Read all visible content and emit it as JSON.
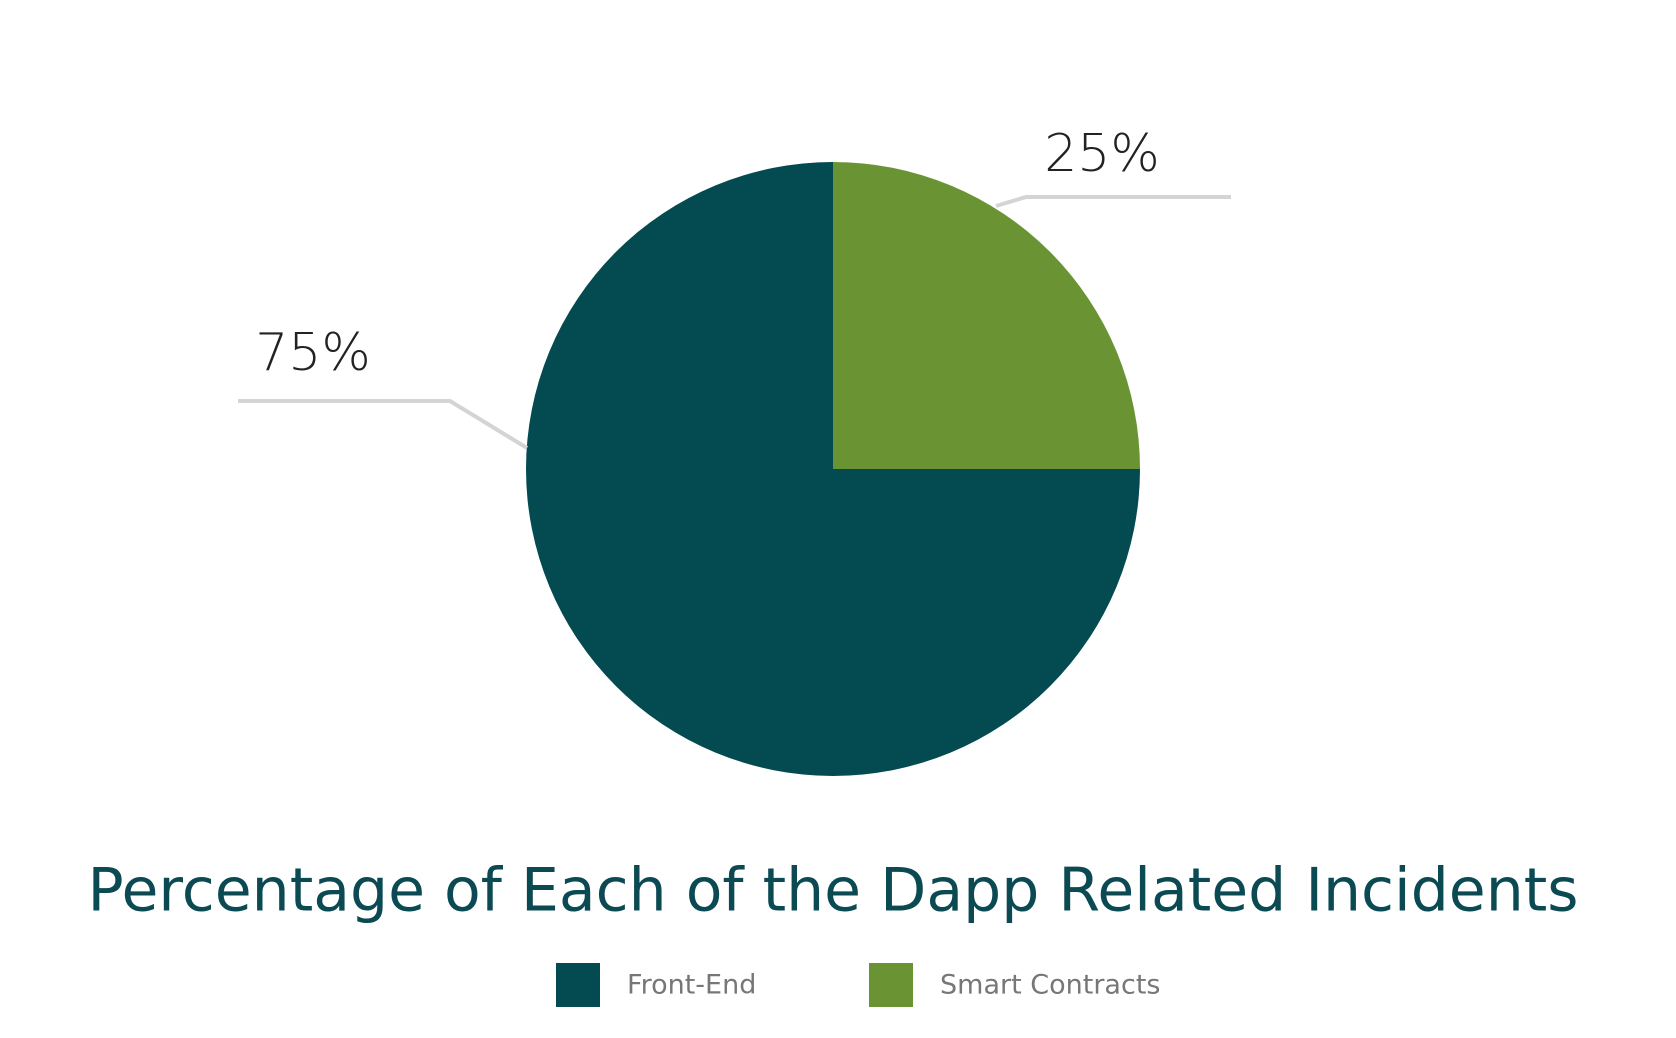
{
  "chart_data": {
    "type": "pie",
    "title": "Percentage of Each of the Dapp Related Incidents",
    "categories": [
      "Front-End",
      "Smart Contracts"
    ],
    "values": [
      75,
      25
    ],
    "value_labels": [
      "75%",
      "25%"
    ],
    "colors": [
      "#034a51",
      "#6a9434"
    ],
    "legend": "bottom"
  }
}
